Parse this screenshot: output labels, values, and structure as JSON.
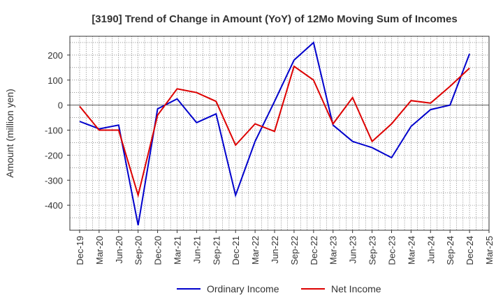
{
  "chart_data": {
    "type": "line",
    "title": "[3190]  Trend of Change in Amount (YoY) of 12Mo Moving Sum of Incomes",
    "xlabel": "",
    "ylabel": "Amount (million yen)",
    "categories": [
      "Dec-19",
      "Mar-20",
      "Jun-20",
      "Sep-20",
      "Dec-20",
      "Mar-21",
      "Jun-21",
      "Sep-21",
      "Dec-21",
      "Mar-22",
      "Jun-22",
      "Sep-22",
      "Dec-22",
      "Mar-23",
      "Jun-23",
      "Sep-23",
      "Dec-23",
      "Mar-24",
      "Jun-24",
      "Sep-24",
      "Dec-24",
      "Mar-25"
    ],
    "yticks": [
      200,
      100,
      0,
      -100,
      -200,
      -300,
      -400
    ],
    "ylim": [
      -500,
      275
    ],
    "grid": true,
    "legend_position": "bottom",
    "series": [
      {
        "name": "Ordinary Income",
        "color": "#0000cc",
        "values": [
          -65,
          -95,
          -80,
          -480,
          -15,
          25,
          -70,
          -35,
          -360,
          -145,
          15,
          180,
          250,
          -80,
          -145,
          -170,
          -210,
          -85,
          -18,
          0,
          205,
          null
        ]
      },
      {
        "name": "Net Income",
        "color": "#dd0000",
        "values": [
          -5,
          -100,
          -100,
          -360,
          -40,
          65,
          50,
          15,
          -160,
          -75,
          -105,
          155,
          100,
          -75,
          30,
          -145,
          -75,
          18,
          8,
          75,
          148,
          null
        ]
      }
    ]
  }
}
